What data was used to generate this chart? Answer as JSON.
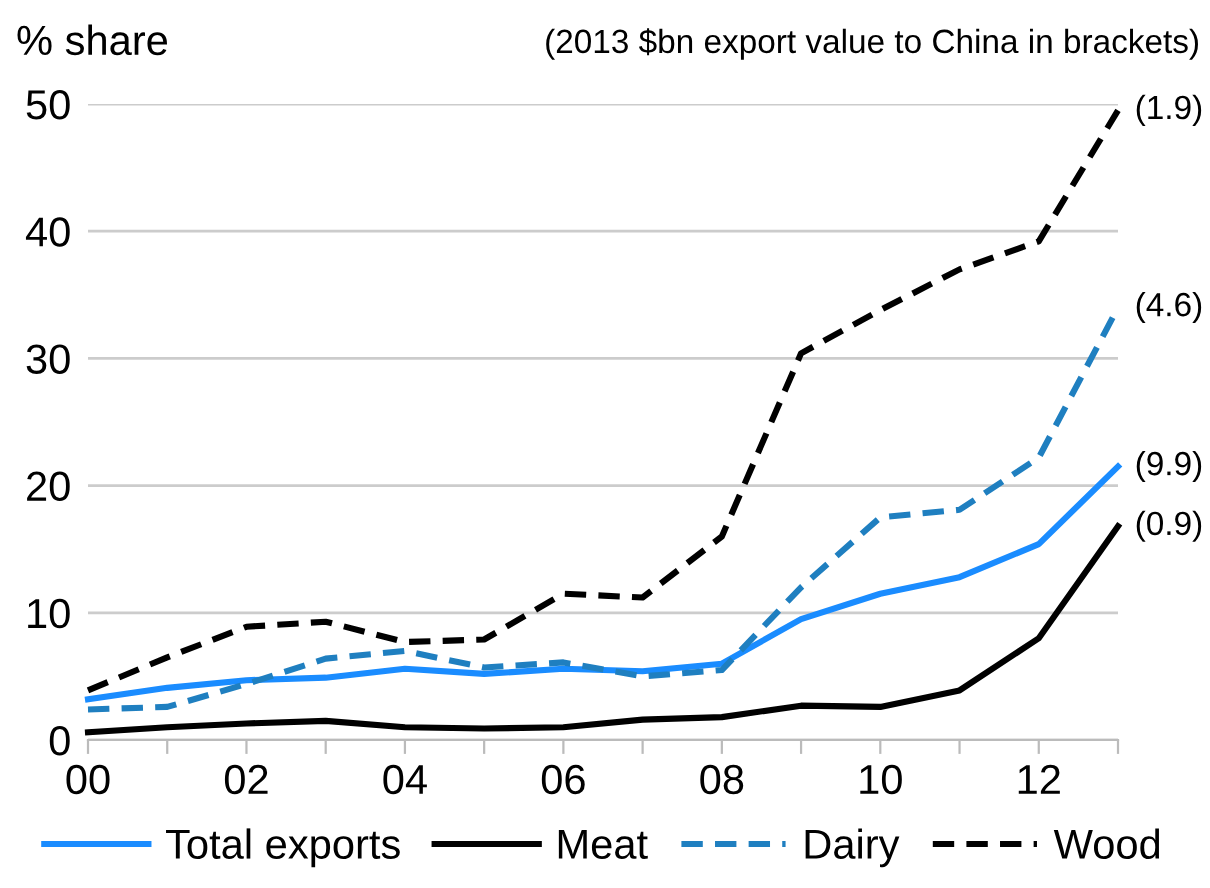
{
  "chart_data": {
    "type": "line",
    "subtitle": "(2013 $bn export value to China in brackets)",
    "ylabel": "% share",
    "categories": [
      "00",
      null,
      "02",
      null,
      "04",
      null,
      "06",
      null,
      "08",
      null,
      "10",
      null,
      "12",
      null
    ],
    "series": [
      {
        "name": "Total exports",
        "color": "#1a8cff",
        "line_style": "solid",
        "values": [
          3.2,
          4.1,
          4.7,
          4.9,
          5.6,
          5.2,
          5.6,
          5.4,
          6.0,
          9.5,
          11.5,
          12.8,
          15.4,
          21.5
        ]
      },
      {
        "name": "Meat",
        "color": "#000000",
        "line_style": "solid",
        "values": [
          0.6,
          1.0,
          1.3,
          1.5,
          1.0,
          0.9,
          1.0,
          1.6,
          1.8,
          2.7,
          2.6,
          3.9,
          8.0,
          16.8
        ]
      },
      {
        "name": "Dairy",
        "color": "#1f7fc0",
        "line_style": "dashed",
        "values": [
          2.4,
          2.6,
          4.4,
          6.4,
          7.0,
          5.7,
          6.1,
          5.0,
          5.5,
          12.0,
          17.5,
          18.1,
          22.2,
          34.0
        ]
      },
      {
        "name": "Wood",
        "color": "#000000",
        "line_style": "dashed",
        "values": [
          3.9,
          6.5,
          8.9,
          9.3,
          7.7,
          7.9,
          11.5,
          11.2,
          16.0,
          30.4,
          33.8,
          37.0,
          39.2,
          49.5
        ]
      }
    ],
    "annotations": [
      "(9.9)",
      "(0.9)",
      "(4.6)",
      "(1.9)"
    ],
    "ylim": [
      0,
      50
    ],
    "yticks": [
      0,
      10,
      20,
      30,
      40,
      50
    ],
    "grid": "y",
    "legend": "bottom",
    "marker": "none"
  }
}
